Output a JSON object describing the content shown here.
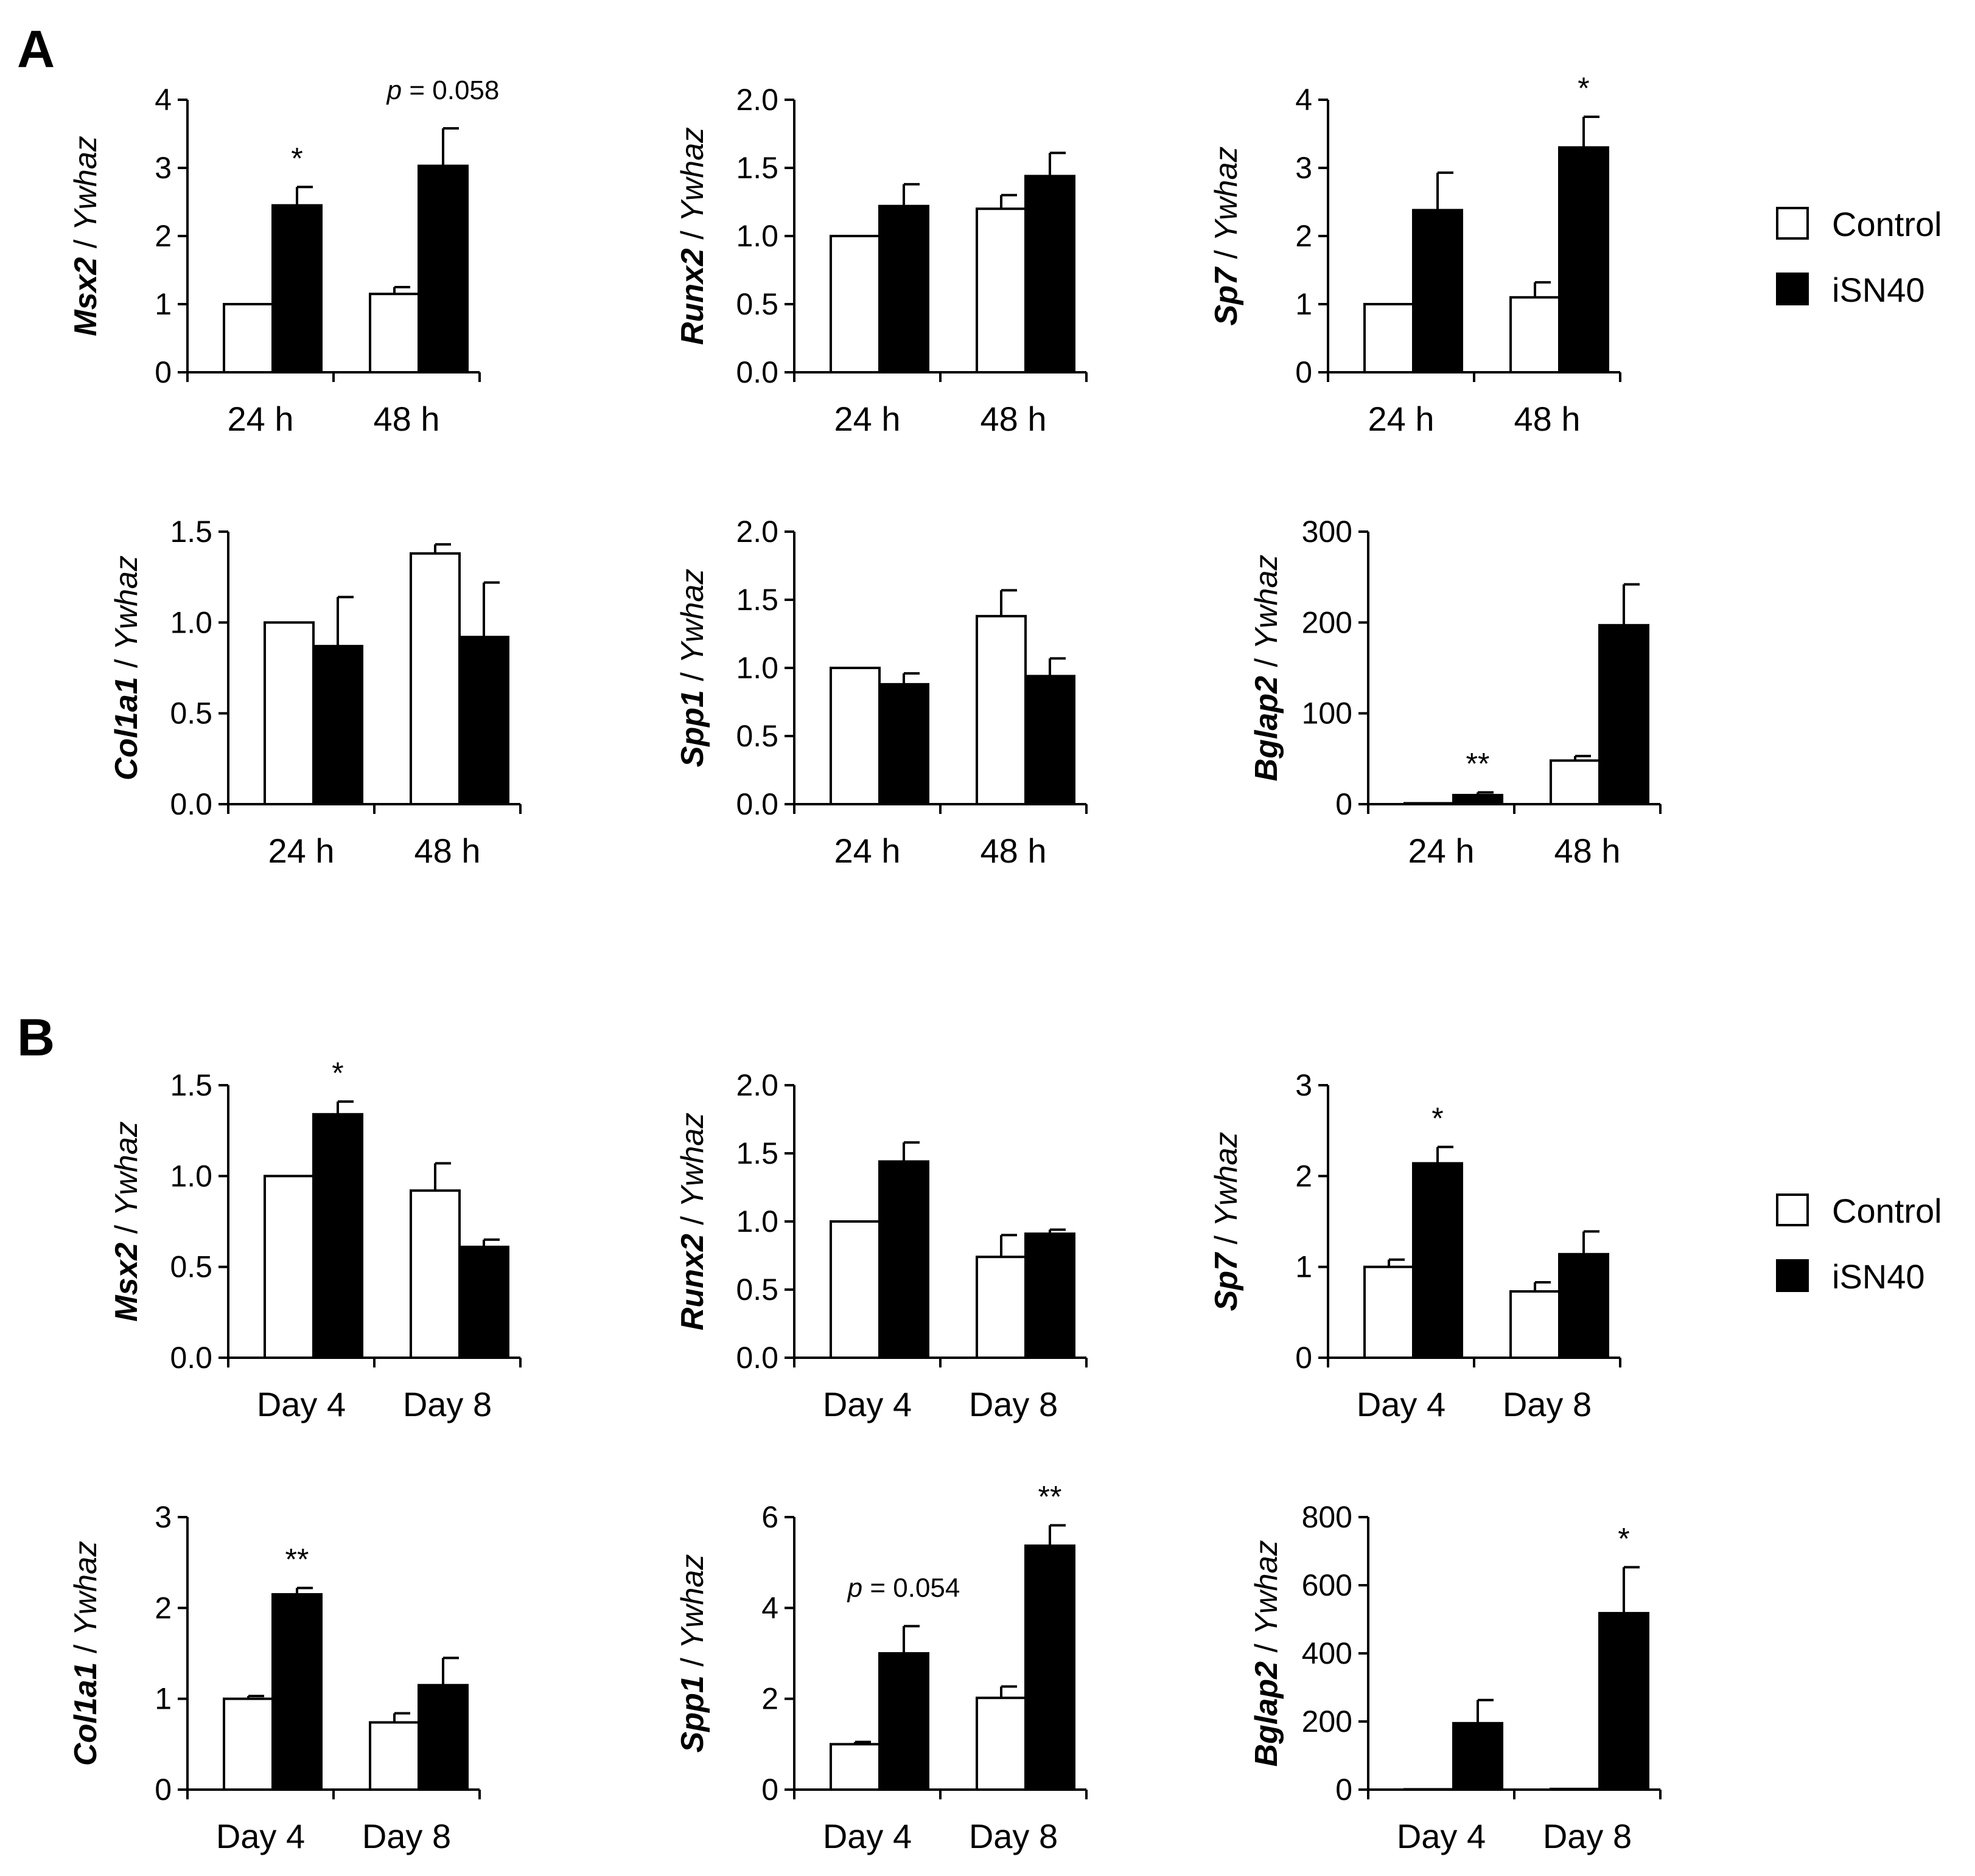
{
  "panel_labels": [
    "A",
    "B"
  ],
  "colors": {
    "control": "#ffffff",
    "treatment": "#000000",
    "stroke": "#000000"
  },
  "legend": {
    "A": [
      {
        "label": "Control",
        "color": "#ffffff"
      },
      {
        "label": "iSN40",
        "color": "#000000"
      }
    ],
    "B": [
      {
        "label": "Control",
        "color": "#ffffff"
      },
      {
        "label": "iSN40",
        "color": "#000000"
      }
    ]
  },
  "chart_data": [
    {
      "panel": "A",
      "type": "bar",
      "gene": "Msx2",
      "ref": "Ywhaz",
      "categories": [
        "24 h",
        "48 h"
      ],
      "series": [
        {
          "name": "Control",
          "values": [
            1.0,
            1.15
          ],
          "errors": [
            0,
            0.1
          ]
        },
        {
          "name": "iSN40",
          "values": [
            2.45,
            3.03
          ],
          "errors": [
            0.27,
            0.55
          ]
        }
      ],
      "ylim": [
        0,
        4
      ],
      "yticks": [
        "0",
        "1",
        "2",
        "3",
        "4"
      ],
      "annotations": [
        {
          "text": "*",
          "category": 0,
          "series": 1
        },
        {
          "text": "p = 0.058",
          "category": 1,
          "series": 1
        }
      ]
    },
    {
      "panel": "A",
      "type": "bar",
      "gene": "Runx2",
      "ref": "Ywhaz",
      "categories": [
        "24 h",
        "48 h"
      ],
      "series": [
        {
          "name": "Control",
          "values": [
            1.0,
            1.2
          ],
          "errors": [
            0,
            0.1
          ]
        },
        {
          "name": "iSN40",
          "values": [
            1.22,
            1.44
          ],
          "errors": [
            0.16,
            0.17
          ]
        }
      ],
      "ylim": [
        0,
        2
      ],
      "yticks": [
        "0.0",
        "0.5",
        "1.0",
        "1.5",
        "2.0"
      ],
      "annotations": []
    },
    {
      "panel": "A",
      "type": "bar",
      "gene": "Sp7",
      "ref": "Ywhaz",
      "categories": [
        "24 h",
        "48 h"
      ],
      "series": [
        {
          "name": "Control",
          "values": [
            1.0,
            1.1
          ],
          "errors": [
            0,
            0.22
          ]
        },
        {
          "name": "iSN40",
          "values": [
            2.38,
            3.3
          ],
          "errors": [
            0.55,
            0.45
          ]
        }
      ],
      "ylim": [
        0,
        4
      ],
      "yticks": [
        "0",
        "1",
        "2",
        "3",
        "4"
      ],
      "annotations": [
        {
          "text": "*",
          "category": 1,
          "series": 1
        }
      ]
    },
    {
      "panel": "A",
      "type": "bar",
      "gene": "Col1a1",
      "ref": "Ywhaz",
      "categories": [
        "24 h",
        "48 h"
      ],
      "series": [
        {
          "name": "Control",
          "values": [
            1.0,
            1.38
          ],
          "errors": [
            0,
            0.05
          ]
        },
        {
          "name": "iSN40",
          "values": [
            0.87,
            0.92
          ],
          "errors": [
            0.27,
            0.3
          ]
        }
      ],
      "ylim": [
        0,
        1.5
      ],
      "yticks": [
        "0.0",
        "0.5",
        "1.0",
        "1.5"
      ],
      "annotations": []
    },
    {
      "panel": "A",
      "type": "bar",
      "gene": "Spp1",
      "ref": "Ywhaz",
      "categories": [
        "24 h",
        "48 h"
      ],
      "series": [
        {
          "name": "Control",
          "values": [
            1.0,
            1.38
          ],
          "errors": [
            0,
            0.19
          ]
        },
        {
          "name": "iSN40",
          "values": [
            0.88,
            0.94
          ],
          "errors": [
            0.08,
            0.13
          ]
        }
      ],
      "ylim": [
        0,
        2
      ],
      "yticks": [
        "0.0",
        "0.5",
        "1.0",
        "1.5",
        "2.0"
      ],
      "annotations": []
    },
    {
      "panel": "A",
      "type": "bar",
      "gene": "Bglap2",
      "ref": "Ywhaz",
      "categories": [
        "24 h",
        "48 h"
      ],
      "series": [
        {
          "name": "Control",
          "values": [
            1,
            48
          ],
          "errors": [
            0,
            5
          ]
        },
        {
          "name": "iSN40",
          "values": [
            10,
            197
          ],
          "errors": [
            3,
            45
          ]
        }
      ],
      "ylim": [
        0,
        300
      ],
      "yticks": [
        "0",
        "100",
        "200",
        "300"
      ],
      "annotations": [
        {
          "text": "**",
          "category": 0,
          "series": 1
        }
      ]
    },
    {
      "panel": "B",
      "type": "bar",
      "gene": "Msx2",
      "ref": "Ywhaz",
      "categories": [
        "Day 4",
        "Day 8"
      ],
      "series": [
        {
          "name": "Control",
          "values": [
            1.0,
            0.92
          ],
          "errors": [
            0,
            0.15
          ]
        },
        {
          "name": "iSN40",
          "values": [
            1.34,
            0.61
          ],
          "errors": [
            0.07,
            0.04
          ]
        }
      ],
      "ylim": [
        0,
        1.5
      ],
      "yticks": [
        "0.0",
        "0.5",
        "1.0",
        "1.5"
      ],
      "annotations": [
        {
          "text": "*",
          "category": 0,
          "series": 1
        }
      ]
    },
    {
      "panel": "B",
      "type": "bar",
      "gene": "Runx2",
      "ref": "Ywhaz",
      "categories": [
        "Day 4",
        "Day 8"
      ],
      "series": [
        {
          "name": "Control",
          "values": [
            1.0,
            0.74
          ],
          "errors": [
            0,
            0.16
          ]
        },
        {
          "name": "iSN40",
          "values": [
            1.44,
            0.91
          ],
          "errors": [
            0.14,
            0.03
          ]
        }
      ],
      "ylim": [
        0,
        2
      ],
      "yticks": [
        "0.0",
        "0.5",
        "1.0",
        "1.5",
        "2.0"
      ],
      "annotations": []
    },
    {
      "panel": "B",
      "type": "bar",
      "gene": "Sp7",
      "ref": "Ywhaz",
      "categories": [
        "Day 4",
        "Day 8"
      ],
      "series": [
        {
          "name": "Control",
          "values": [
            1.0,
            0.73
          ],
          "errors": [
            0.08,
            0.1
          ]
        },
        {
          "name": "iSN40",
          "values": [
            2.14,
            1.14
          ],
          "errors": [
            0.18,
            0.25
          ]
        }
      ],
      "ylim": [
        0,
        3
      ],
      "yticks": [
        "0",
        "1",
        "2",
        "3"
      ],
      "annotations": [
        {
          "text": "*",
          "category": 0,
          "series": 1
        }
      ]
    },
    {
      "panel": "B",
      "type": "bar",
      "gene": "Col1a1",
      "ref": "Ywhaz",
      "categories": [
        "Day 4",
        "Day 8"
      ],
      "series": [
        {
          "name": "Control",
          "values": [
            1.0,
            0.74
          ],
          "errors": [
            0.03,
            0.1
          ]
        },
        {
          "name": "iSN40",
          "values": [
            2.15,
            1.15
          ],
          "errors": [
            0.07,
            0.3
          ]
        }
      ],
      "ylim": [
        0,
        3
      ],
      "yticks": [
        "0",
        "1",
        "2",
        "3"
      ],
      "annotations": [
        {
          "text": "**",
          "category": 0,
          "series": 1
        }
      ]
    },
    {
      "panel": "B",
      "type": "bar",
      "gene": "Spp1",
      "ref": "Ywhaz",
      "categories": [
        "Day 4",
        "Day 8"
      ],
      "series": [
        {
          "name": "Control",
          "values": [
            1.0,
            2.02
          ],
          "errors": [
            0.05,
            0.25
          ]
        },
        {
          "name": "iSN40",
          "values": [
            3.0,
            5.37
          ],
          "errors": [
            0.6,
            0.45
          ]
        }
      ],
      "ylim": [
        0,
        6
      ],
      "yticks": [
        "0",
        "2",
        "4",
        "6"
      ],
      "annotations": [
        {
          "text": "p = 0.054",
          "category": 0,
          "series": 1
        },
        {
          "text": "**",
          "category": 1,
          "series": 1
        }
      ]
    },
    {
      "panel": "B",
      "type": "bar",
      "gene": "Bglap2",
      "ref": "Ywhaz",
      "categories": [
        "Day 4",
        "Day 8"
      ],
      "series": [
        {
          "name": "Control",
          "values": [
            1,
            2
          ],
          "errors": [
            0,
            0
          ]
        },
        {
          "name": "iSN40",
          "values": [
            195,
            518
          ],
          "errors": [
            68,
            135
          ]
        }
      ],
      "ylim": [
        0,
        800
      ],
      "yticks": [
        "0",
        "200",
        "400",
        "600",
        "800"
      ],
      "annotations": [
        {
          "text": "*",
          "category": 1,
          "series": 1
        }
      ]
    }
  ]
}
